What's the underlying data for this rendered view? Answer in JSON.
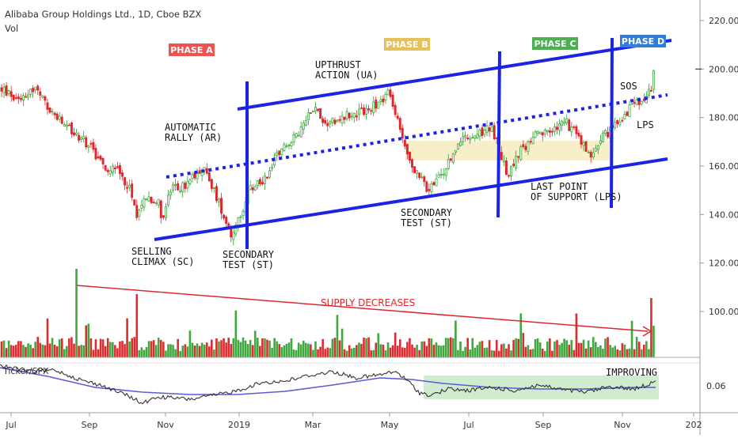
{
  "header": {
    "title": "Alibaba Group Holdings Ltd., 1D, Cboe BZX",
    "subtitle": "Vol"
  },
  "indicator": {
    "label": "Ticker/SPX",
    "value": "0.06"
  },
  "colors": {
    "up": "#2aa12a",
    "down": "#e0262c",
    "trend": "#1a23e6",
    "supply": "#e0262c",
    "ratio": "#333333",
    "ratio_ma": "#5b5bd6",
    "band_yellow": "#f7efc9",
    "band_green": "#cfeccf"
  },
  "phases": [
    {
      "label": "PHASE A",
      "bg": "#ef5350"
    },
    {
      "label": "PHASE B",
      "bg": "#e6c15a"
    },
    {
      "label": "PHASE C",
      "bg": "#4caf50"
    },
    {
      "label": "PHASE D",
      "bg": "#2f7fd8"
    }
  ],
  "annotations": {
    "automatic_rally": [
      "AUTOMATIC",
      "RALLY (AR)"
    ],
    "upthrust": [
      "UPTHRUST",
      "ACTION (UA)"
    ],
    "selling_climax": [
      "SELLING",
      "CLIMAX (SC)"
    ],
    "secondary_test_1": [
      "SECONDARY",
      "TEST (ST)"
    ],
    "secondary_test_2": [
      "SECONDARY",
      "TEST (ST)"
    ],
    "last_point": [
      "LAST POINT",
      "OF SUPPORT (LPS)"
    ],
    "sos": "SOS",
    "lps": "LPS",
    "supply": "SUPPLY DECREASES",
    "improving": "IMPROVING"
  },
  "chart_data": {
    "type": "candlestick",
    "title": "Alibaba Group Holdings Ltd., 1D, Cboe BZX",
    "y_ticks": [
      "220.00",
      "200.00",
      "180.00",
      "160.00",
      "140.00",
      "120.00",
      "100.00"
    ],
    "ylim": [
      88,
      226
    ],
    "x_ticks": [
      "Jul",
      "Sep",
      "Nov",
      "2019",
      "Mar",
      "May",
      "Jul",
      "Sep",
      "Nov",
      "202"
    ],
    "price_path": [
      [
        0,
        192
      ],
      [
        20,
        188
      ],
      [
        45,
        192
      ],
      [
        60,
        184
      ],
      [
        80,
        177
      ],
      [
        100,
        172
      ],
      [
        115,
        168
      ],
      [
        130,
        160
      ],
      [
        150,
        158
      ],
      [
        165,
        150
      ],
      [
        172,
        140
      ],
      [
        185,
        148
      ],
      [
        200,
        145
      ],
      [
        205,
        138
      ],
      [
        215,
        150
      ],
      [
        235,
        152
      ],
      [
        255,
        160
      ],
      [
        270,
        150
      ],
      [
        285,
        138
      ],
      [
        292,
        132
      ],
      [
        300,
        136
      ],
      [
        315,
        150
      ],
      [
        335,
        155
      ],
      [
        355,
        168
      ],
      [
        375,
        172
      ],
      [
        395,
        185
      ],
      [
        410,
        178
      ],
      [
        430,
        180
      ],
      [
        450,
        182
      ],
      [
        470,
        184
      ],
      [
        490,
        190
      ],
      [
        505,
        175
      ],
      [
        520,
        160
      ],
      [
        540,
        150
      ],
      [
        560,
        157
      ],
      [
        580,
        170
      ],
      [
        600,
        172
      ],
      [
        620,
        176
      ],
      [
        632,
        166
      ],
      [
        640,
        156
      ],
      [
        655,
        165
      ],
      [
        675,
        172
      ],
      [
        695,
        174
      ],
      [
        715,
        178
      ],
      [
        730,
        172
      ],
      [
        745,
        164
      ],
      [
        760,
        172
      ],
      [
        775,
        176
      ],
      [
        790,
        182
      ],
      [
        805,
        186
      ],
      [
        815,
        186
      ],
      [
        822,
        192
      ],
      [
        826,
        199
      ]
    ],
    "volume_series": {
      "name": "Vol",
      "peak": 117,
      "end_peak": 105,
      "baseline": 90
    },
    "ratio_series": {
      "name": "Ticker/SPX",
      "last": "0.06"
    }
  }
}
